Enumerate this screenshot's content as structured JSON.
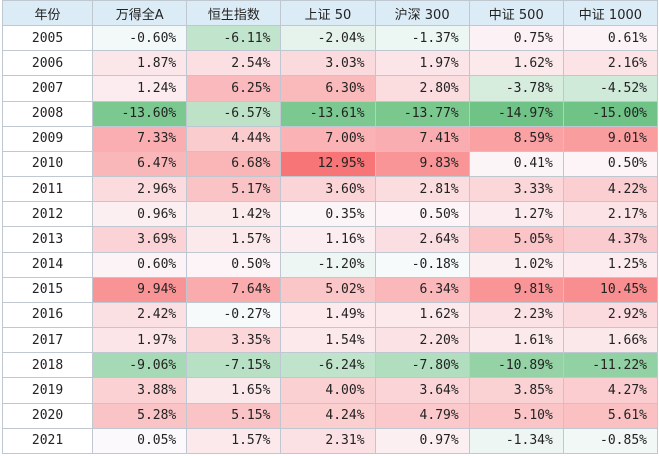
{
  "table": {
    "headers": [
      "年份",
      "万得全A",
      "恒生指数",
      "上证 50",
      "沪深 300",
      "中证 500",
      "中证 1000"
    ],
    "rows": [
      {
        "year": "2005",
        "cells": [
          "-0.60%",
          "-6.11%",
          "-2.04%",
          "-1.37%",
          "0.75%",
          "0.61%"
        ]
      },
      {
        "year": "2006",
        "cells": [
          "1.87%",
          "2.54%",
          "3.03%",
          "1.97%",
          "1.62%",
          "2.16%"
        ]
      },
      {
        "year": "2007",
        "cells": [
          "1.24%",
          "6.25%",
          "6.30%",
          "2.80%",
          "-3.78%",
          "-4.52%"
        ]
      },
      {
        "year": "2008",
        "cells": [
          "-13.60%",
          "-6.57%",
          "-13.61%",
          "-13.77%",
          "-14.97%",
          "-15.00%"
        ]
      },
      {
        "year": "2009",
        "cells": [
          "7.33%",
          "4.44%",
          "7.00%",
          "7.41%",
          "8.59%",
          "9.01%"
        ]
      },
      {
        "year": "2010",
        "cells": [
          "6.47%",
          "6.68%",
          "12.95%",
          "9.83%",
          "0.41%",
          "0.50%"
        ]
      },
      {
        "year": "2011",
        "cells": [
          "2.96%",
          "5.17%",
          "3.60%",
          "2.81%",
          "3.33%",
          "4.22%"
        ]
      },
      {
        "year": "2012",
        "cells": [
          "0.96%",
          "1.42%",
          "0.35%",
          "0.50%",
          "1.27%",
          "2.17%"
        ]
      },
      {
        "year": "2013",
        "cells": [
          "3.69%",
          "1.57%",
          "1.16%",
          "2.64%",
          "5.05%",
          "4.37%"
        ]
      },
      {
        "year": "2014",
        "cells": [
          "0.60%",
          "0.50%",
          "-1.20%",
          "-0.18%",
          "1.02%",
          "1.25%"
        ]
      },
      {
        "year": "2015",
        "cells": [
          "9.94%",
          "7.64%",
          "5.02%",
          "6.34%",
          "9.81%",
          "10.45%"
        ]
      },
      {
        "year": "2016",
        "cells": [
          "2.42%",
          "-0.27%",
          "1.49%",
          "1.62%",
          "2.23%",
          "2.92%"
        ]
      },
      {
        "year": "2017",
        "cells": [
          "1.97%",
          "3.35%",
          "1.54%",
          "2.20%",
          "1.61%",
          "1.66%"
        ]
      },
      {
        "year": "2018",
        "cells": [
          "-9.06%",
          "-7.15%",
          "-6.24%",
          "-7.80%",
          "-10.89%",
          "-11.22%"
        ]
      },
      {
        "year": "2019",
        "cells": [
          "3.88%",
          "1.65%",
          "4.00%",
          "3.64%",
          "3.85%",
          "4.27%"
        ]
      },
      {
        "year": "2020",
        "cells": [
          "5.28%",
          "5.15%",
          "4.24%",
          "4.79%",
          "5.10%",
          "5.61%"
        ]
      },
      {
        "year": "2021",
        "cells": [
          "0.05%",
          "1.57%",
          "2.31%",
          "0.97%",
          "-1.34%",
          "-0.85%"
        ]
      }
    ]
  },
  "colors": {
    "header_bg": "#dcecf6",
    "positive_max": "#f8696b",
    "negative_max": "#63be7b",
    "neutral": "#fcfcff"
  }
}
